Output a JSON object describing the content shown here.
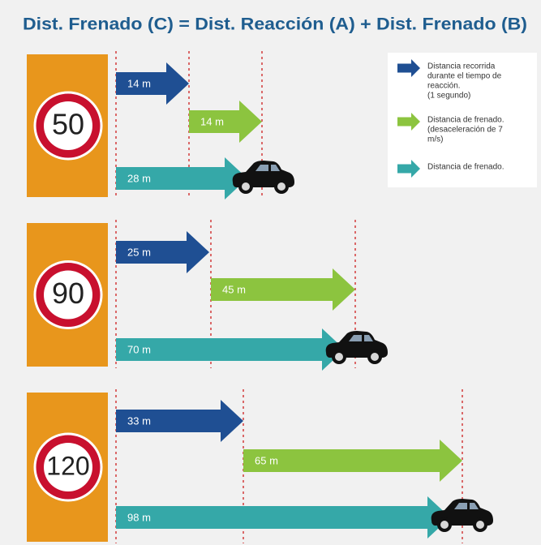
{
  "title": "Dist. Frenado (C) = Dist. Reacción (A) + Dist. Frenado (B)",
  "panels": [
    {
      "speed": "50",
      "arrows": [
        "14 m",
        "14 m",
        "28 m"
      ]
    },
    {
      "speed": "90",
      "arrows": [
        "25 m",
        "45 m",
        "70 m"
      ]
    },
    {
      "speed": "120",
      "arrows": [
        "33 m",
        "65 m",
        "98 m"
      ]
    }
  ],
  "legend": [
    {
      "lines": [
        "Distancia recorrida",
        "durante el tiempo de",
        "reacción.",
        "(1 segundo)"
      ]
    },
    {
      "lines": [
        "Distancia de frenado.",
        "(desaceleración de 7",
        "m/s)"
      ]
    },
    {
      "lines": [
        "Distancia de frenado."
      ]
    }
  ]
}
